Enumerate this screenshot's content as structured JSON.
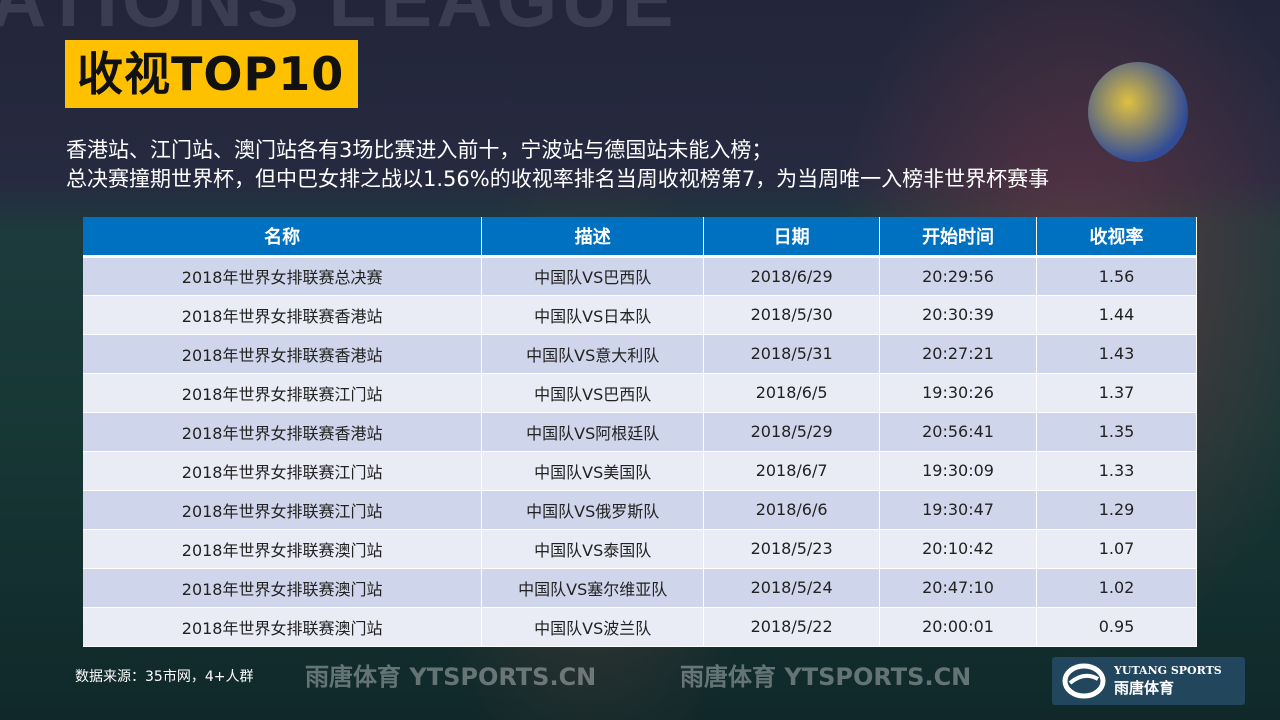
{
  "background_text": "ATIONS LEAGUE",
  "title": "收视TOP10",
  "subtitle": [
    "香港站、江门站、澳门站各有3场比赛进入前十，宁波站与德国站未能入榜；",
    "总决赛撞期世界杯，但中巴女排之战以1.56%的收视率排名当周收视榜第7，为当周唯一入榜非世界杯赛事"
  ],
  "table": {
    "headers": [
      "名称",
      "描述",
      "日期",
      "开始时间",
      "收视率"
    ],
    "rows": [
      [
        "2018年世界女排联赛总决赛",
        "中国队VS巴西队",
        "2018/6/29",
        "20:29:56",
        "1.56"
      ],
      [
        "2018年世界女排联赛香港站",
        "中国队VS日本队",
        "2018/5/30",
        "20:30:39",
        "1.44"
      ],
      [
        "2018年世界女排联赛香港站",
        "中国队VS意大利队",
        "2018/5/31",
        "20:27:21",
        "1.43"
      ],
      [
        "2018年世界女排联赛江门站",
        "中国队VS巴西队",
        "2018/6/5",
        "19:30:26",
        "1.37"
      ],
      [
        "2018年世界女排联赛香港站",
        "中国队VS阿根廷队",
        "2018/5/29",
        "20:56:41",
        "1.35"
      ],
      [
        "2018年世界女排联赛江门站",
        "中国队VS美国队",
        "2018/6/7",
        "19:30:09",
        "1.33"
      ],
      [
        "2018年世界女排联赛江门站",
        "中国队VS俄罗斯队",
        "2018/6/6",
        "19:30:47",
        "1.29"
      ],
      [
        "2018年世界女排联赛澳门站",
        "中国队VS泰国队",
        "2018/5/23",
        "20:10:42",
        "1.07"
      ],
      [
        "2018年世界女排联赛澳门站",
        "中国队VS塞尔维亚队",
        "2018/5/24",
        "20:47:10",
        "1.02"
      ],
      [
        "2018年世界女排联赛澳门站",
        "中国队VS波兰队",
        "2018/5/22",
        "20:00:01",
        "0.95"
      ]
    ]
  },
  "watermark": {
    "cn": "雨唐体育",
    "en": "YTSPORTS.CN"
  },
  "source": "数据来源：35市网，4+人群",
  "logo": {
    "en": "YUTANG SPORTS",
    "cn": "雨唐体育"
  },
  "colors": {
    "title_bg": "#ffc000",
    "header_bg": "#0070c0",
    "row_odd": "#cfd5ea",
    "row_even": "#e9ebf5"
  }
}
